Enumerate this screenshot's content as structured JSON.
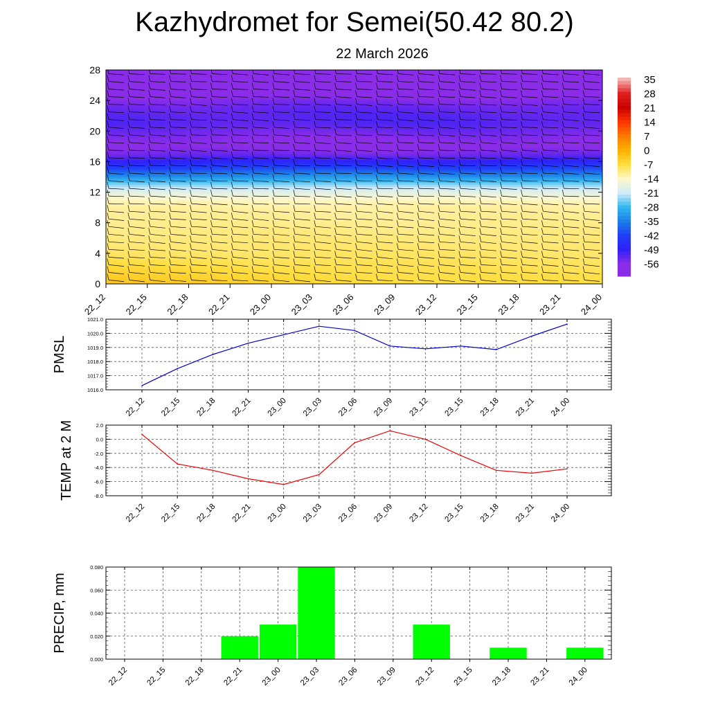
{
  "title": "Kazhydromet for Semei(50.42 80.2)",
  "subtitle": "22 March 2026",
  "time_labels": [
    "22_12",
    "22_15",
    "22_18",
    "22_21",
    "23_00",
    "23_03",
    "23_06",
    "23_09",
    "23_12",
    "23_15",
    "23_18",
    "23_21",
    "24_00"
  ],
  "colors": {
    "pmsl_line": "#0000cc",
    "temp_line": "#ee0000",
    "precip_bar": "#00ff00",
    "wind_barb": "#000000"
  },
  "chart_data": [
    {
      "type": "heatmap",
      "name": "temperature-cross-section",
      "title": "",
      "ylabel": "",
      "y_ticks": [
        0,
        4,
        8,
        12,
        16,
        20,
        24,
        28
      ],
      "ylim": [
        0,
        28
      ],
      "x_categories": [
        "22_12",
        "22_15",
        "22_18",
        "22_21",
        "23_00",
        "23_03",
        "23_06",
        "23_09",
        "23_12",
        "23_15",
        "23_18",
        "23_21",
        "24_00"
      ],
      "colorbar_labels": [
        "35",
        "28",
        "21",
        "14",
        "7",
        "0",
        "-7",
        "-14",
        "-21",
        "-28",
        "-35",
        "-42",
        "-49",
        "-56"
      ],
      "colorbar_values": [
        35,
        28,
        21,
        14,
        7,
        0,
        -7,
        -14,
        -21,
        -28,
        -35,
        -42,
        -49,
        -56
      ],
      "colorbar_colors": [
        "#f4b4b4",
        "#e02020",
        "#cc0000",
        "#ff3300",
        "#ff7a00",
        "#ffb000",
        "#ffde40",
        "#fff7c8",
        "#d0ecfa",
        "#34b8f0",
        "#1c80e8",
        "#2040f8",
        "#3020f8",
        "#8a2ce8"
      ],
      "profile_height_km": [
        0,
        1,
        2,
        3,
        4,
        5,
        6,
        7,
        8,
        9,
        10,
        10.8,
        11.5,
        12,
        13,
        14,
        15,
        16,
        17,
        18,
        19,
        20,
        21,
        22,
        23,
        24,
        25,
        26,
        27,
        28
      ],
      "profile_temp_c": [
        -7,
        -7.5,
        -8,
        -8.5,
        -9,
        -9.5,
        -10,
        -10.5,
        -11,
        -11.5,
        -12,
        -13,
        -16,
        -18,
        -24,
        -32,
        -40,
        -48,
        -54,
        -57,
        -56,
        -54,
        -52,
        -52,
        -53,
        -55,
        -58,
        -62,
        -64,
        -66
      ],
      "wind_barbs": "present"
    },
    {
      "type": "line",
      "name": "pmsl",
      "ylabel": "PMSL",
      "categories": [
        "22_12",
        "22_15",
        "22_18",
        "22_21",
        "23_00",
        "23_03",
        "23_06",
        "23_09",
        "23_12",
        "23_15",
        "23_18",
        "23_21",
        "24_00"
      ],
      "values": [
        1016.3,
        1017.5,
        1018.5,
        1019.3,
        1019.9,
        1020.5,
        1020.2,
        1019.1,
        1018.9,
        1019.1,
        1018.85,
        1019.8,
        1020.65
      ],
      "ylim": [
        1016.0,
        1021.0
      ],
      "y_ticks": [
        1016.0,
        1017.0,
        1018.0,
        1019.0,
        1020.0,
        1021.0
      ],
      "y_tick_labels": [
        "1016.0",
        "1017.0",
        "1018.0",
        "1019.0",
        "1020.0",
        "1021.0"
      ]
    },
    {
      "type": "line",
      "name": "temp-2m",
      "ylabel": "TEMP at 2 M",
      "categories": [
        "22_12",
        "22_15",
        "22_18",
        "22_21",
        "23_00",
        "23_03",
        "23_06",
        "23_09",
        "23_12",
        "23_15",
        "23_18",
        "23_21",
        "24_00"
      ],
      "values": [
        0.7,
        -3.5,
        -4.4,
        -5.6,
        -6.4,
        -5.0,
        -0.5,
        1.2,
        0.0,
        -2.3,
        -4.4,
        -4.8,
        -4.2
      ],
      "ylim": [
        -8.0,
        2.0
      ],
      "y_ticks": [
        -8.0,
        -6.0,
        -4.0,
        -2.0,
        0.0,
        2.0
      ],
      "y_tick_labels": [
        "-8.0",
        "-6.0",
        "-4.0",
        "-2.0",
        "0.0",
        "2.0"
      ]
    },
    {
      "type": "bar",
      "name": "precip",
      "ylabel": "PRECIP, mm",
      "categories": [
        "22_12",
        "22_15",
        "22_18",
        "22_21",
        "23_00",
        "23_03",
        "23_06",
        "23_09",
        "23_12",
        "23_15",
        "23_18",
        "23_21",
        "24_00"
      ],
      "values": [
        0,
        0,
        0,
        0.02,
        0.03,
        0.08,
        0,
        0,
        0.03,
        0,
        0.01,
        0,
        0.01
      ],
      "ylim": [
        0,
        0.08
      ],
      "y_ticks": [
        0,
        0.02,
        0.04,
        0.06,
        0.08
      ],
      "y_tick_labels": [
        "0.000",
        "0.020",
        "0.040",
        "0.060",
        "0.080"
      ]
    }
  ]
}
